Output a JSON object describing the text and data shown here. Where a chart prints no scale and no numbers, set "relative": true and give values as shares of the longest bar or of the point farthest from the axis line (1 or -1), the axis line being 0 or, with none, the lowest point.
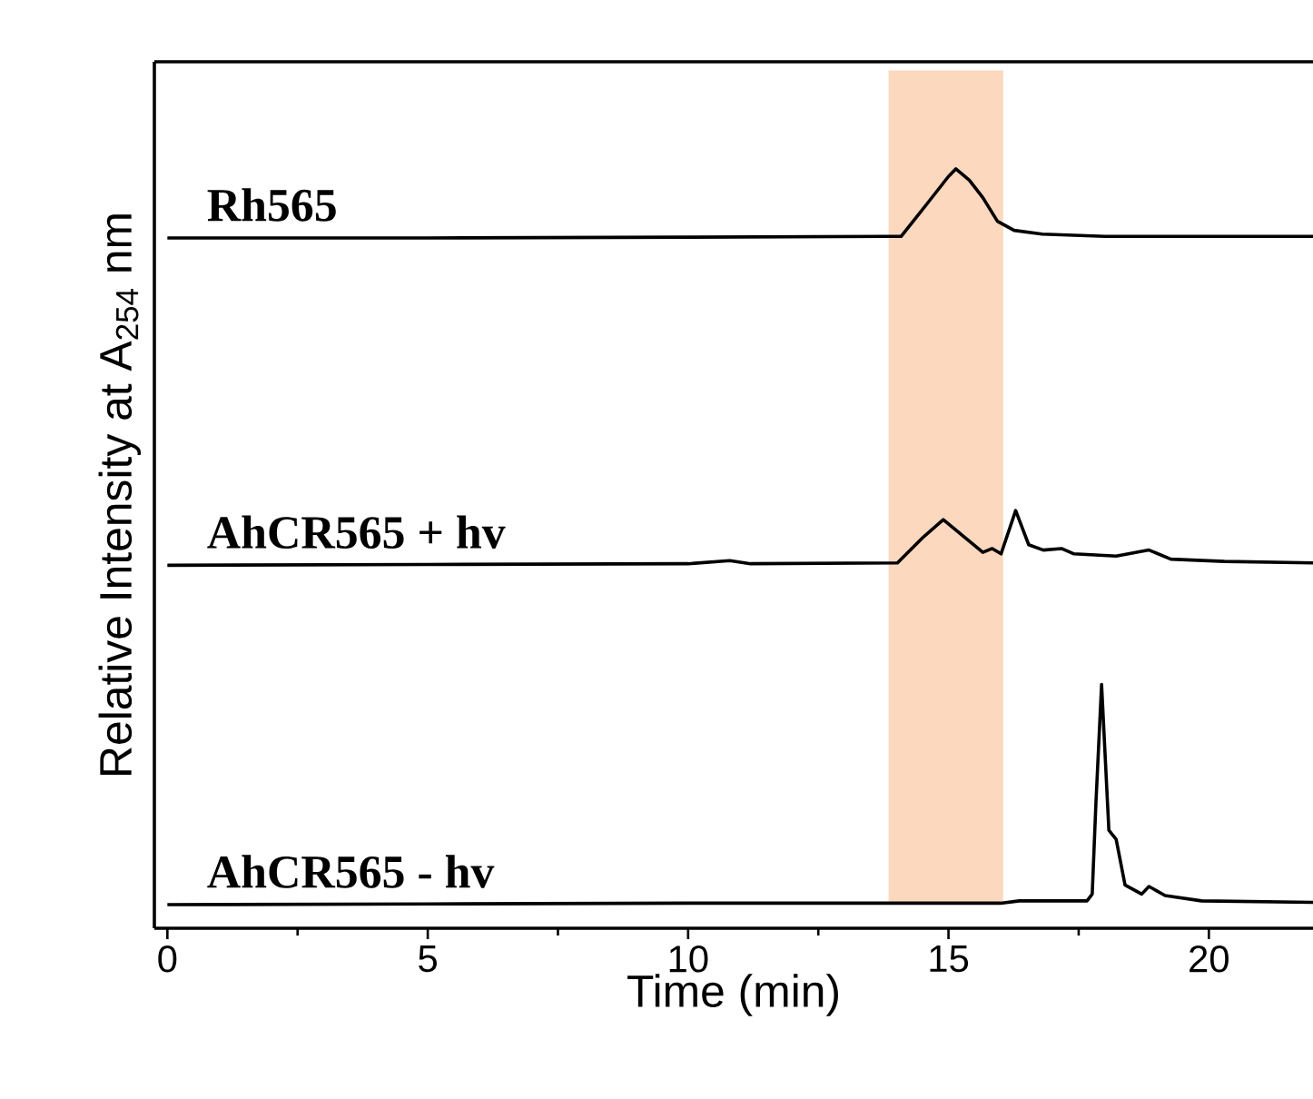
{
  "chart_data": {
    "type": "line",
    "relative": true,
    "xlabel": "Time (min)",
    "ylabel": "Relative Intensity at A$_{254}$ nm",
    "xlim": [
      -0.25,
      22
    ],
    "xticks": [
      0,
      5,
      10,
      15,
      20
    ],
    "marker": "none",
    "line_style": "solid",
    "bands": [
      {
        "axis": "x",
        "from": 13.85,
        "to": 16.05,
        "color": "#fcd8bf"
      }
    ],
    "series": [
      {
        "name": "Rh565",
        "color": "#000000",
        "x": [
          0,
          5,
          10,
          13.8,
          14.09,
          14.6,
          15.0,
          15.14,
          15.4,
          15.66,
          15.94,
          16.26,
          16.8,
          18,
          22
        ],
        "values": [
          0.909,
          0.909,
          0.91,
          0.911,
          0.911,
          0.955,
          0.99,
          1.0,
          0.985,
          0.962,
          0.931,
          0.919,
          0.914,
          0.911,
          0.911
        ]
      },
      {
        "name": "AhCR565 + hv",
        "color": "#000000",
        "x": [
          0,
          5,
          10,
          10.8,
          11.2,
          14.02,
          14.5,
          14.9,
          15.66,
          15.84,
          16.01,
          16.29,
          16.54,
          16.82,
          17.17,
          17.41,
          18.22,
          18.85,
          19.27,
          20.3,
          22
        ],
        "values": [
          0.478,
          0.479,
          0.48,
          0.484,
          0.48,
          0.481,
          0.514,
          0.538,
          0.495,
          0.5,
          0.493,
          0.55,
          0.505,
          0.498,
          0.5,
          0.493,
          0.49,
          0.498,
          0.486,
          0.483,
          0.481
        ]
      },
      {
        "name": "AhCR565 - hv",
        "color": "#000000",
        "x": [
          0,
          5,
          10,
          16.0,
          16.36,
          17.66,
          17.76,
          17.83,
          17.94,
          18.08,
          18.22,
          18.39,
          18.71,
          18.85,
          19.16,
          19.86,
          22
        ],
        "values": [
          0.031,
          0.032,
          0.033,
          0.033,
          0.036,
          0.036,
          0.045,
          0.163,
          0.321,
          0.129,
          0.117,
          0.057,
          0.045,
          0.055,
          0.043,
          0.036,
          0.034
        ]
      }
    ]
  }
}
